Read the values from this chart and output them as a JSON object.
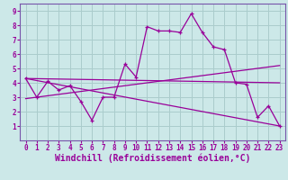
{
  "bg_color": "#cce8e8",
  "grid_color": "#aacccc",
  "line_color": "#990099",
  "spine_color": "#7755aa",
  "xlabel": "Windchill (Refroidissement éolien,°C)",
  "xlim": [
    -0.5,
    23.5
  ],
  "ylim": [
    0,
    9.5
  ],
  "xticks": [
    0,
    1,
    2,
    3,
    4,
    5,
    6,
    7,
    8,
    9,
    10,
    11,
    12,
    13,
    14,
    15,
    16,
    17,
    18,
    19,
    20,
    21,
    22,
    23
  ],
  "yticks": [
    1,
    2,
    3,
    4,
    5,
    6,
    7,
    8,
    9
  ],
  "series1_x": [
    0,
    1,
    2,
    3,
    4,
    5,
    6,
    7,
    8,
    9,
    10,
    11,
    12,
    13,
    14,
    15,
    16,
    17,
    18,
    19,
    20,
    21,
    22,
    23
  ],
  "series1_y": [
    4.3,
    3.0,
    4.1,
    3.5,
    3.8,
    2.7,
    1.4,
    3.0,
    3.0,
    5.3,
    4.4,
    7.9,
    7.6,
    7.6,
    7.5,
    8.8,
    7.5,
    6.5,
    6.3,
    4.0,
    3.9,
    1.6,
    2.4,
    1.0
  ],
  "series2_x": [
    0,
    23
  ],
  "series2_y": [
    4.3,
    4.0
  ],
  "series3_x": [
    0,
    23
  ],
  "series3_y": [
    4.3,
    1.0
  ],
  "series4_x": [
    0,
    23
  ],
  "series4_y": [
    2.9,
    5.2
  ],
  "tick_fontsize": 5.5,
  "label_fontsize": 7.0
}
